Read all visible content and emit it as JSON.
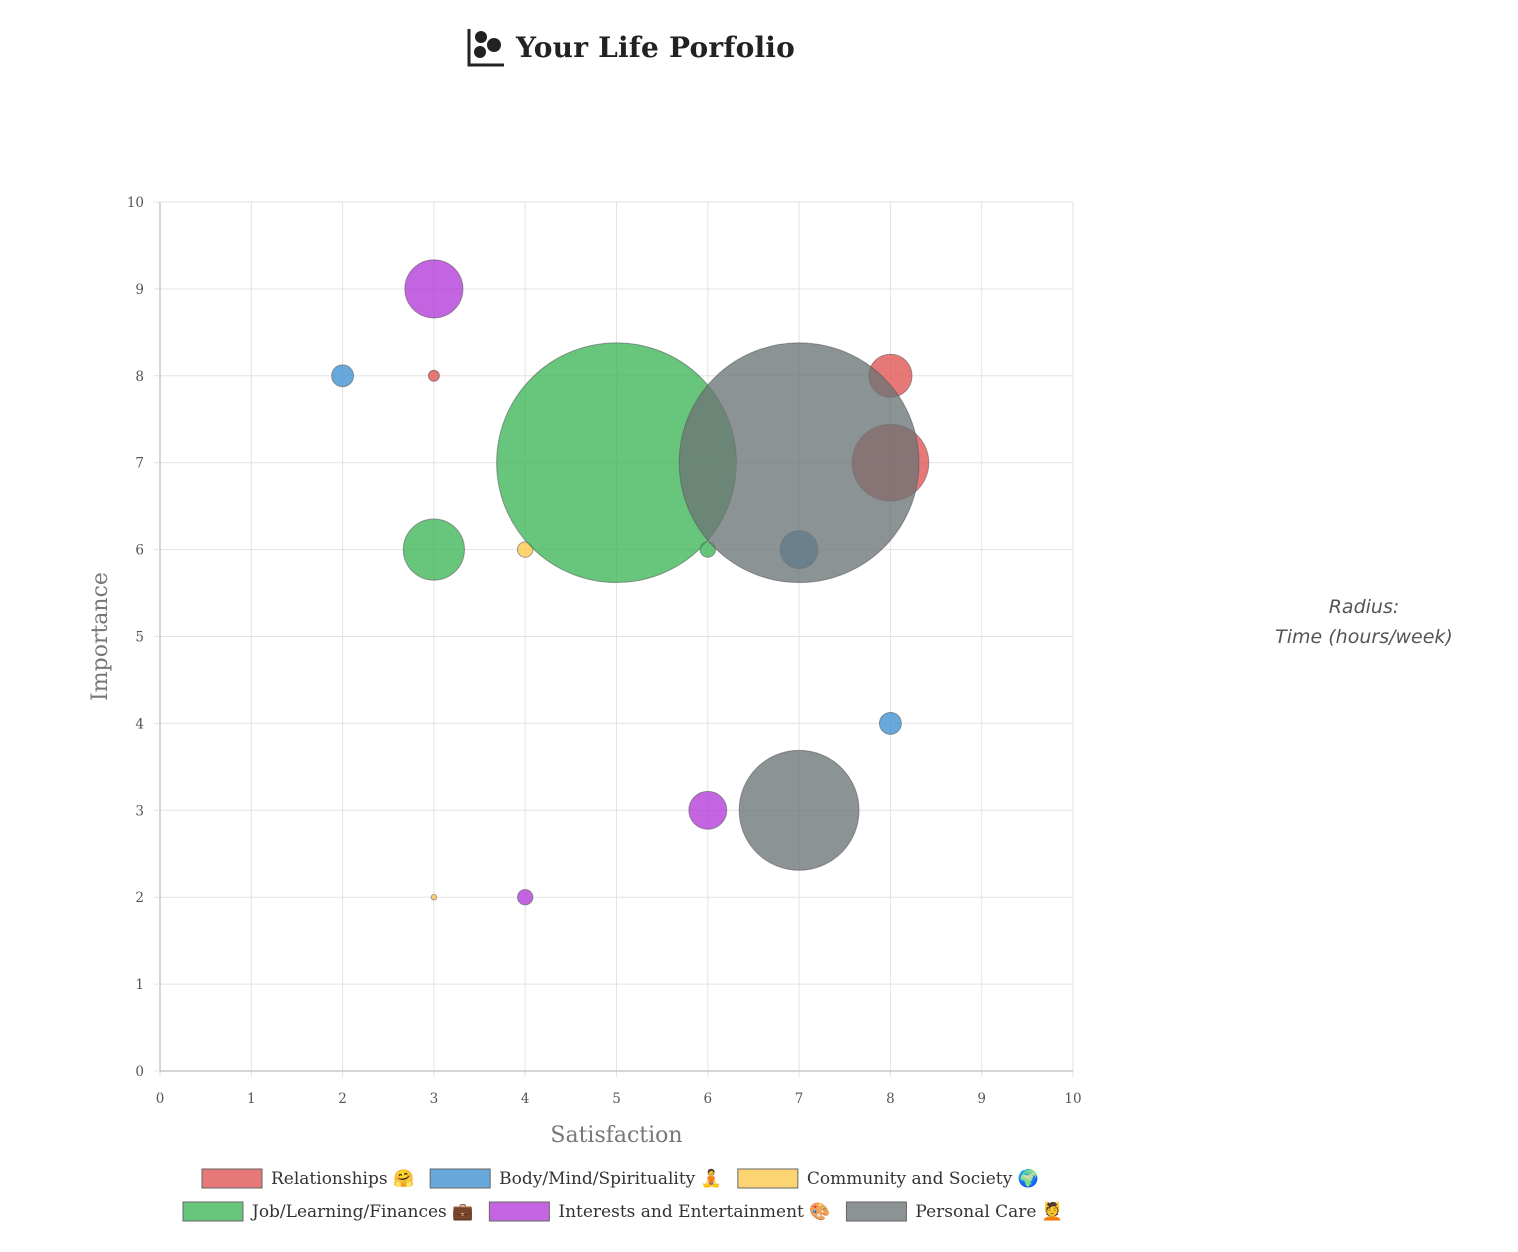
{
  "header": {
    "title": "Your Life Porfolio",
    "icon": "bubble-chart-icon"
  },
  "radius_note": {
    "line1": "Radius:",
    "line2": "Time (hours/week)"
  },
  "chart_data": {
    "type": "bubble",
    "title": "",
    "xlabel": "Satisfaction",
    "ylabel": "Importance",
    "xlim": [
      0,
      10
    ],
    "ylim": [
      0,
      10
    ],
    "xticks": [
      0,
      1,
      2,
      3,
      4,
      5,
      6,
      7,
      8,
      9,
      10
    ],
    "yticks": [
      0,
      1,
      2,
      3,
      4,
      5,
      6,
      7,
      8,
      9,
      10
    ],
    "grid": true,
    "legend_position": "bottom",
    "radius_unit": "hours/week",
    "series": [
      {
        "name": "Relationships 🤗",
        "color": "#e05252",
        "points": [
          {
            "x": 3,
            "y": 8,
            "r": 0.17
          },
          {
            "x": 8,
            "y": 8,
            "r": 2.6
          },
          {
            "x": 8,
            "y": 7,
            "r": 8.2
          }
        ]
      },
      {
        "name": "Body/Mind/Spirituality 🧘",
        "color": "#3d8fd1",
        "points": [
          {
            "x": 2,
            "y": 8,
            "r": 0.67
          },
          {
            "x": 7,
            "y": 6,
            "r": 2.0
          },
          {
            "x": 8,
            "y": 4,
            "r": 0.67
          }
        ]
      },
      {
        "name": "Community and Society 🌍",
        "color": "#fdc84a",
        "points": [
          {
            "x": 4,
            "y": 6,
            "r": 0.33
          },
          {
            "x": 3,
            "y": 2,
            "r": 0.04
          }
        ]
      },
      {
        "name": "Job/Learning/Finances 💼",
        "color": "#3db557",
        "points": [
          {
            "x": 5,
            "y": 7,
            "r": 80
          },
          {
            "x": 3,
            "y": 6,
            "r": 5.2
          },
          {
            "x": 6,
            "y": 6,
            "r": 0.33
          }
        ]
      },
      {
        "name": "Interests and Entertainment 🎨",
        "color": "#b23ad8",
        "points": [
          {
            "x": 3,
            "y": 9,
            "r": 4.7
          },
          {
            "x": 6,
            "y": 3,
            "r": 2.0
          },
          {
            "x": 4,
            "y": 2,
            "r": 0.33
          }
        ]
      },
      {
        "name": "Personal Care 💆",
        "color": "#6b7476",
        "points": [
          {
            "x": 7,
            "y": 7,
            "r": 80
          },
          {
            "x": 7,
            "y": 3,
            "r": 20
          }
        ]
      }
    ]
  }
}
